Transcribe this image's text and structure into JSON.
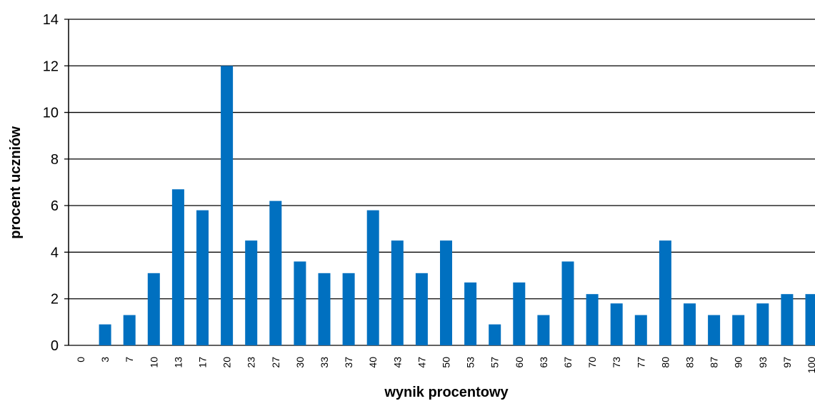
{
  "chart_data": {
    "type": "bar",
    "title": "",
    "xlabel": "wynik procentowy",
    "ylabel": "procent uczniów",
    "ylim": [
      0,
      14
    ],
    "yticks": [
      0,
      2,
      4,
      6,
      8,
      10,
      12,
      14
    ],
    "grid": true,
    "bar_color": "#0070C0",
    "categories": [
      "0",
      "3",
      "7",
      "10",
      "13",
      "17",
      "20",
      "23",
      "27",
      "30",
      "33",
      "37",
      "40",
      "43",
      "47",
      "50",
      "53",
      "57",
      "60",
      "63",
      "67",
      "70",
      "73",
      "77",
      "80",
      "83",
      "87",
      "90",
      "93",
      "97",
      "100"
    ],
    "values": [
      0,
      0.9,
      1.3,
      3.1,
      6.7,
      5.8,
      12.0,
      4.5,
      6.2,
      3.6,
      3.1,
      3.1,
      5.8,
      4.5,
      3.1,
      4.5,
      2.7,
      0.9,
      2.7,
      1.3,
      3.6,
      2.2,
      1.8,
      1.3,
      4.5,
      1.8,
      1.3,
      1.3,
      1.8,
      2.2,
      2.2
    ]
  }
}
